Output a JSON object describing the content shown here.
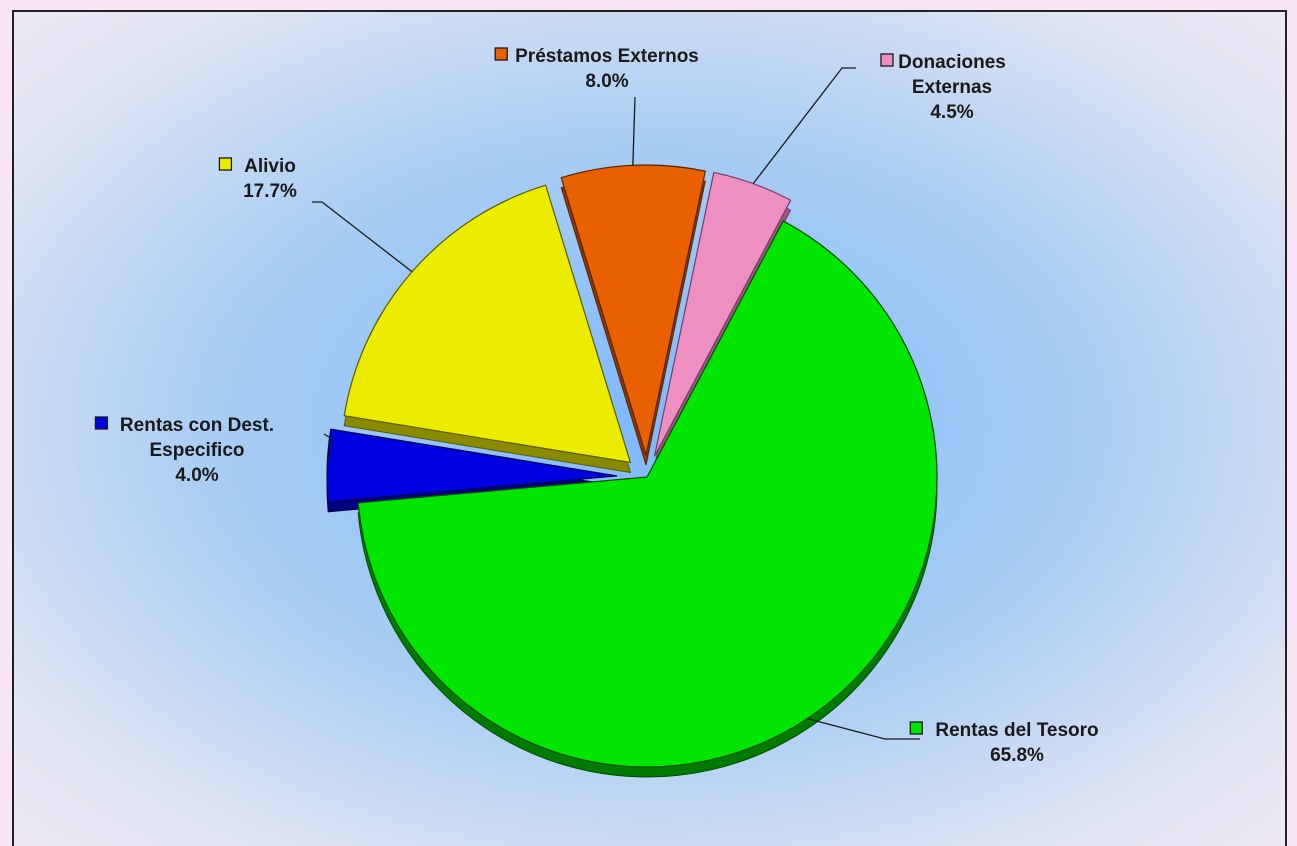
{
  "chart_data": {
    "type": "pie",
    "title": "",
    "exploded": true,
    "slices": [
      {
        "label": "Rentas del Tesoro",
        "label_lines": [
          "Rentas del Tesoro"
        ],
        "value": 65.8,
        "value_label": "65.8%",
        "color": "#00e600",
        "side_color": "#007a00",
        "edge_color": "#004d00"
      },
      {
        "label": "Rentas con Dest. Especifico",
        "label_lines": [
          "Rentas con Dest.",
          "Especifico"
        ],
        "value": 4.0,
        "value_label": "4.0%",
        "color": "#0000e0",
        "side_color": "#000080",
        "edge_color": "#000050"
      },
      {
        "label": "Alivio",
        "label_lines": [
          "Alivio"
        ],
        "value": 17.7,
        "value_label": "17.7%",
        "color": "#ecec00",
        "side_color": "#8a8a00",
        "edge_color": "#5a5a00"
      },
      {
        "label": "Préstamos Externos",
        "label_lines": [
          "Préstamos Externos"
        ],
        "value": 8.0,
        "value_label": "8.0%",
        "color": "#e86000",
        "side_color": "#8a3800",
        "edge_color": "#5a2400"
      },
      {
        "label": "Donaciones Externas",
        "label_lines": [
          "Donaciones",
          "Externas"
        ],
        "value": 4.5,
        "value_label": "4.5%",
        "color": "#ee8fc2",
        "side_color": "#a05580",
        "edge_color": "#704060"
      }
    ],
    "legend": "none",
    "grid": false
  }
}
